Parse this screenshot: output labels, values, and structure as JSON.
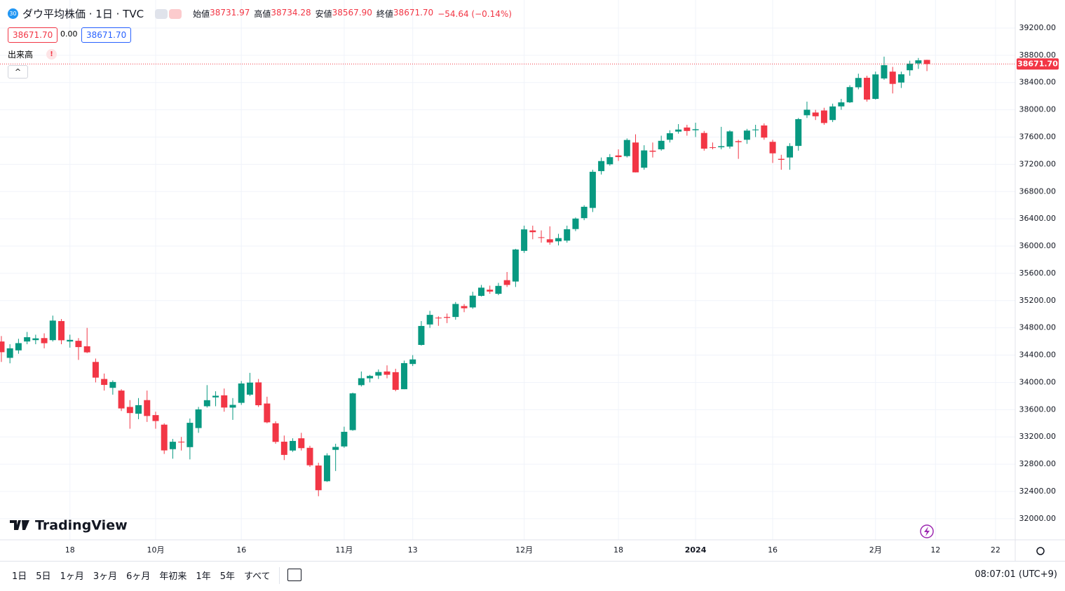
{
  "header": {
    "badge": "30",
    "title": "ダウ平均株価 · 1日 · TVC",
    "ohlc": [
      {
        "label": "始値",
        "value": "38731.97"
      },
      {
        "label": "高値",
        "value": "38734.28"
      },
      {
        "label": "安値",
        "value": "38567.90"
      },
      {
        "label": "終値",
        "value": "38671.70"
      }
    ],
    "change": "−54.64 (−0.14%)",
    "price_boxes": [
      "38671.70",
      "0.00",
      "38671.70"
    ],
    "volume": "出来高",
    "logo": "TradingView"
  },
  "chart_data": {
    "type": "candlestick",
    "open": [
      34600,
      34360,
      34470,
      34600,
      34620,
      34650,
      34620,
      34900,
      34600,
      34610,
      34530,
      34300,
      34050,
      33920,
      33880,
      33640,
      33540,
      33740,
      33520,
      33380,
      33020,
      33130,
      33050,
      33330,
      33650,
      33780,
      33810,
      33630,
      33700,
      33820,
      34000,
      33690,
      33400,
      33130,
      33000,
      33180,
      33040,
      32780,
      32550,
      33010,
      33060,
      33300,
      33960,
      34060,
      34100,
      34160,
      34150,
      33900,
      34270,
      34550,
      34850,
      34950,
      34960,
      34960,
      35120,
      35100,
      35270,
      35360,
      35300,
      35500,
      35480,
      35930,
      36230,
      36130,
      36100,
      36070,
      36080,
      36250,
      36410,
      36560,
      37100,
      37200,
      37330,
      37320,
      37520,
      37150,
      37400,
      37420,
      37560,
      37680,
      37740,
      37700,
      37660,
      37450,
      37450,
      37460,
      37540,
      37560,
      37700,
      37770,
      37530,
      37280,
      37300,
      37470,
      37920,
      37960,
      37990,
      37850,
      38050,
      38110,
      38330,
      38470,
      38160,
      38460,
      38560,
      38400,
      38580,
      38680,
      38731.97
    ],
    "high": [
      34680,
      34560,
      34640,
      34740,
      34700,
      34720,
      34980,
      34930,
      34700,
      34650,
      34800,
      34350,
      34130,
      34030,
      33900,
      33740,
      33770,
      33880,
      33570,
      33400,
      33170,
      33200,
      33470,
      33640,
      33960,
      33870,
      33910,
      33770,
      34020,
      34140,
      34050,
      33790,
      33430,
      33220,
      33180,
      33260,
      33070,
      32820,
      32960,
      33100,
      33350,
      33850,
      34160,
      34110,
      34190,
      34250,
      34200,
      34320,
      34400,
      34900,
      35050,
      34970,
      35010,
      35180,
      35150,
      35330,
      35430,
      35420,
      35460,
      35620,
      35960,
      36300,
      36300,
      36230,
      36290,
      36180,
      36300,
      36420,
      36600,
      37120,
      37300,
      37350,
      37420,
      37580,
      37640,
      37480,
      37520,
      37620,
      37700,
      37790,
      37780,
      37810,
      37690,
      37520,
      37750,
      37700,
      37560,
      37720,
      37780,
      37800,
      37560,
      37340,
      37510,
      37880,
      38120,
      38000,
      38030,
      38090,
      38160,
      38360,
      38530,
      38500,
      38560,
      38780,
      38630,
      38560,
      38720,
      38760,
      38734.28
    ],
    "low": [
      34300,
      34280,
      34420,
      34560,
      34560,
      34500,
      34600,
      34560,
      34510,
      34330,
      34430,
      34000,
      33880,
      33820,
      33580,
      33320,
      33460,
      33420,
      33320,
      32950,
      32880,
      33000,
      32870,
      33260,
      33630,
      33650,
      33570,
      33450,
      33670,
      33800,
      33640,
      33400,
      33100,
      32860,
      32980,
      33000,
      32760,
      32330,
      32540,
      32700,
      33040,
      33290,
      33940,
      34000,
      34050,
      34060,
      33870,
      33900,
      34240,
      34540,
      34800,
      34830,
      34870,
      34920,
      35030,
      35080,
      35260,
      35300,
      35280,
      35400,
      35400,
      35900,
      36100,
      36050,
      36020,
      36010,
      36050,
      36220,
      36380,
      36500,
      37050,
      37180,
      37250,
      37300,
      37080,
      37120,
      37300,
      37400,
      37520,
      37650,
      37620,
      37600,
      37400,
      37420,
      37420,
      37430,
      37280,
      37500,
      37600,
      37560,
      37220,
      37120,
      37120,
      37400,
      37880,
      37850,
      37780,
      37820,
      38000,
      38100,
      38300,
      38120,
      38150,
      38440,
      38240,
      38320,
      38500,
      38600,
      38567.9
    ],
    "close": [
      34443,
      34500,
      34576,
      34663,
      34646,
      34575,
      34907,
      34618,
      34624,
      34518,
      34441,
      34070,
      33963,
      34006,
      33618,
      33550,
      33666,
      33507,
      33433,
      33002,
      33129,
      33119,
      33407,
      33604,
      33739,
      33804,
      33631,
      33670,
      33984,
      33997,
      33665,
      33414,
      33127,
      32936,
      33141,
      33035,
      32784,
      32418,
      32929,
      33053,
      33275,
      33839,
      34061,
      34095,
      34152,
      34112,
      33891,
      34283,
      34337,
      34828,
      34991,
      34945,
      34947,
      35151,
      35088,
      35273,
      35390,
      35333,
      35416,
      35430,
      35950,
      36245,
      36204,
      36124,
      36054,
      36117,
      36247,
      36404,
      36577,
      37090,
      37248,
      37305,
      37306,
      37557,
      37082,
      37404,
      37385,
      37545,
      37656,
      37710,
      37689,
      37715,
      37430,
      37440,
      37466,
      37683,
      37525,
      37695,
      37711,
      37592,
      37361,
      37266,
      37468,
      37863,
      38001,
      37905,
      37806,
      38049,
      38109,
      38333,
      38467,
      38150,
      38519,
      38654,
      38380,
      38521,
      38677,
      38726,
      38671.7
    ],
    "colors": {
      "up": "#089981",
      "down": "#f23645"
    },
    "xlim": [
      -0.16,
      118.3
    ],
    "xticks": [
      {
        "value": 8,
        "label": "18"
      },
      {
        "value": 18,
        "label": "10月"
      },
      {
        "value": 28,
        "label": "16"
      },
      {
        "value": 40,
        "label": "11月"
      },
      {
        "value": 48,
        "label": "13"
      },
      {
        "value": 61,
        "label": "12月"
      },
      {
        "value": 72,
        "label": "18"
      },
      {
        "value": 81,
        "label": "2024"
      },
      {
        "value": 90,
        "label": "16"
      },
      {
        "value": 102,
        "label": "2月"
      },
      {
        "value": 109,
        "label": "12"
      },
      {
        "value": 116,
        "label": "22"
      }
    ],
    "ylim": [
      31690,
      39611
    ],
    "yticks": [
      {
        "value": 32000,
        "label": "32000.00"
      },
      {
        "value": 32400,
        "label": "32400.00"
      },
      {
        "value": 32800,
        "label": "32800.00"
      },
      {
        "value": 33200,
        "label": "33200.00"
      },
      {
        "value": 33600,
        "label": "33600.00"
      },
      {
        "value": 34000,
        "label": "34000.00"
      },
      {
        "value": 34400,
        "label": "34400.00"
      },
      {
        "value": 34800,
        "label": "34800.00"
      },
      {
        "value": 35200,
        "label": "35200.00"
      },
      {
        "value": 35600,
        "label": "35600.00"
      },
      {
        "value": 36000,
        "label": "36000.00"
      },
      {
        "value": 36400,
        "label": "36400.00"
      },
      {
        "value": 36800,
        "label": "36800.00"
      },
      {
        "value": 37200,
        "label": "37200.00"
      },
      {
        "value": 37600,
        "label": "37600.00"
      },
      {
        "value": 38000,
        "label": "38000.00"
      },
      {
        "value": 38400,
        "label": "38400.00"
      },
      {
        "value": 38800,
        "label": "38800.00"
      },
      {
        "value": 39200,
        "label": "39200.00"
      }
    ],
    "grid": true,
    "last_price_label": "38671.70"
  },
  "toolbar": {
    "ranges": [
      "1日",
      "5日",
      "1ヶ月",
      "3ヶ月",
      "6ヶ月",
      "年初来",
      "1年",
      "5年",
      "すべて"
    ],
    "clock": "08:07:01 (UTC+9)"
  }
}
